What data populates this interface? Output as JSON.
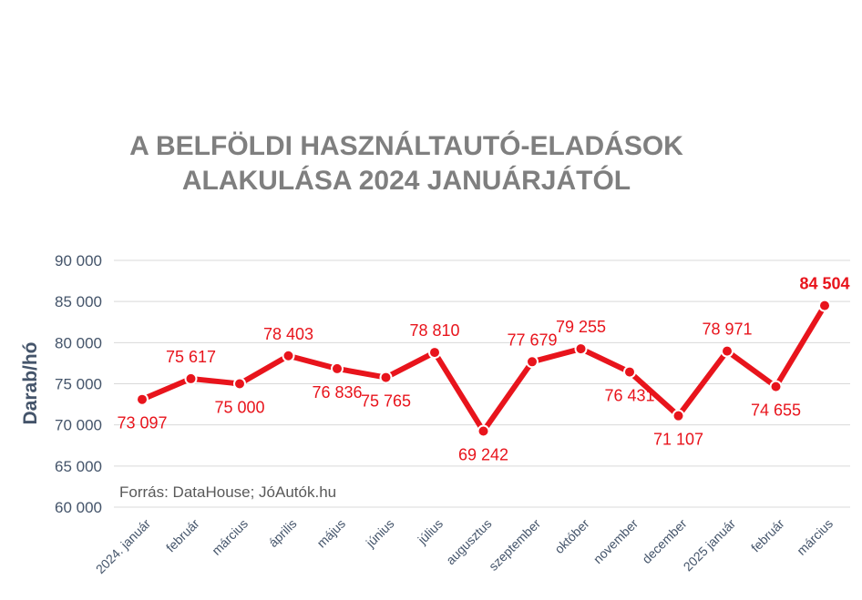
{
  "chart_data": {
    "type": "line",
    "title_lines": [
      "A BELFÖLDI HASZNÁLTAUTÓ-ELADÁSOK",
      "ALAKULÁSA 2024 JANUÁRJÁTÓL"
    ],
    "ylabel": "Darab/hó",
    "xlabel": "",
    "ylim": [
      60000,
      90000
    ],
    "yticks": [
      "60 000",
      "65 000",
      "70 000",
      "75 000",
      "80 000",
      "85 000",
      "90 000"
    ],
    "grid": true,
    "categories": [
      "2024. január",
      "február",
      "március",
      "április",
      "május",
      "június",
      "július",
      "augusztus",
      "szeptember",
      "október",
      "november",
      "december",
      "2025 január",
      "február",
      "március"
    ],
    "values": [
      73097,
      75617,
      75000,
      78403,
      76836,
      75765,
      78810,
      69242,
      77679,
      79255,
      76431,
      71107,
      78971,
      74655,
      84504
    ],
    "data_labels": [
      "73 097",
      "75 617",
      "75 000",
      "78 403",
      "76 836",
      "75 765",
      "78 810",
      "69 242",
      "77 679",
      "79 255",
      "76 431",
      "71 107",
      "78 971",
      "74 655",
      "84 504"
    ],
    "highlight_last_label": true,
    "annotation": "Forrás: DataHouse; JóAutók.hu",
    "colors": {
      "line": "#e8141c",
      "title": "#7f7f7f",
      "axis_text": "#44546a",
      "grid": "#d9d9d9",
      "annotation": "#595959"
    }
  }
}
